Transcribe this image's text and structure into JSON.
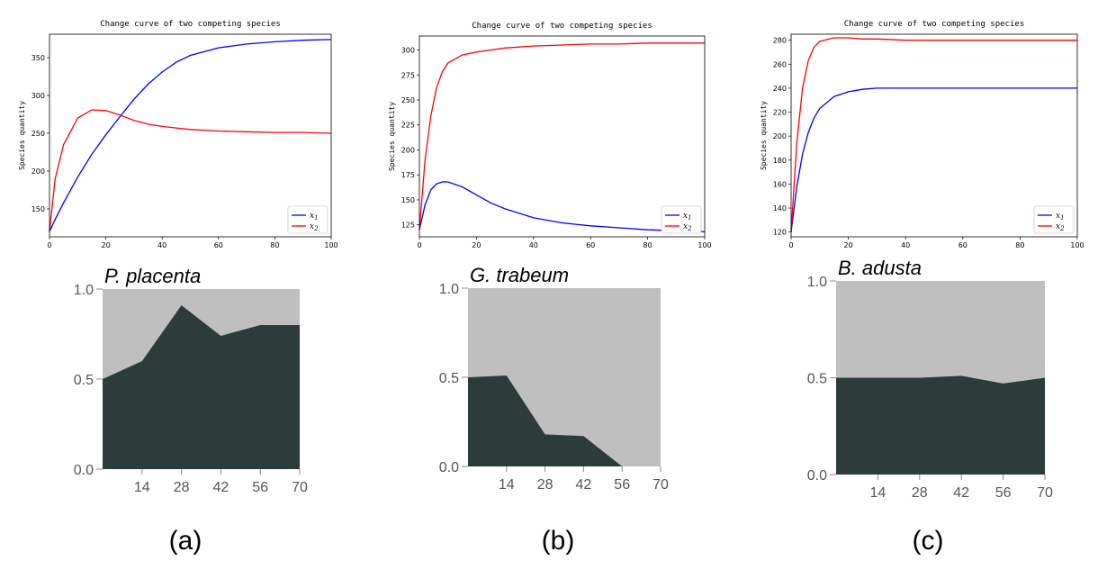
{
  "colors": {
    "x1": "#0000ff",
    "x2": "#ff0000",
    "dark": "#2e3b3b",
    "light": "#c0bfbf"
  },
  "captions": [
    "(a)",
    "(b)",
    "(c)"
  ],
  "chart_data": [
    {
      "type": "line",
      "title": "Change curve of two competing species",
      "ylabel": "Species quantity",
      "xlim": [
        0,
        100
      ],
      "ylim": [
        113,
        381
      ],
      "xticks": [
        0,
        20,
        40,
        60,
        80,
        100
      ],
      "yticks": [
        150,
        200,
        250,
        300,
        350
      ],
      "legend": "bottom-right",
      "x": [
        0,
        2,
        5,
        10,
        15,
        20,
        25,
        30,
        35,
        40,
        45,
        50,
        60,
        70,
        80,
        90,
        100
      ],
      "series": [
        {
          "name": "x1",
          "color": "blue",
          "values": [
            120,
            136,
            158,
            192,
            222,
            248,
            272,
            295,
            315,
            331,
            344,
            353,
            363,
            368,
            371,
            373,
            374
          ]
        },
        {
          "name": "x2",
          "color": "red",
          "values": [
            120,
            190,
            235,
            270,
            281,
            280,
            274,
            267,
            262,
            259,
            257,
            255,
            253,
            252,
            251,
            251,
            250
          ]
        }
      ]
    },
    {
      "type": "line",
      "title": "Change curve of two competing species",
      "ylabel": "Species quantity",
      "xlim": [
        0,
        100
      ],
      "ylim": [
        113,
        314
      ],
      "xticks": [
        0,
        20,
        40,
        60,
        80,
        100
      ],
      "yticks": [
        125,
        150,
        175,
        200,
        225,
        250,
        275,
        300
      ],
      "legend": "bottom-right",
      "x": [
        0,
        2,
        4,
        6,
        8,
        10,
        15,
        20,
        25,
        30,
        40,
        50,
        60,
        70,
        80,
        90,
        100
      ],
      "series": [
        {
          "name": "x1",
          "color": "blue",
          "values": [
            120,
            145,
            160,
            166,
            168,
            168,
            163,
            155,
            147,
            141,
            132,
            127,
            124,
            122,
            120,
            119,
            118
          ]
        },
        {
          "name": "x2",
          "color": "red",
          "values": [
            120,
            190,
            234,
            262,
            278,
            287,
            295,
            298,
            300,
            302,
            304,
            305,
            306,
            306,
            307,
            307,
            307
          ]
        }
      ]
    },
    {
      "type": "line",
      "title": "Change curve of two competing species",
      "ylabel": "Species quantity",
      "xlim": [
        0,
        100
      ],
      "ylim": [
        116,
        285
      ],
      "xticks": [
        0,
        20,
        40,
        60,
        80,
        100
      ],
      "yticks": [
        120,
        140,
        160,
        180,
        200,
        220,
        240,
        260,
        280
      ],
      "legend": "bottom-right",
      "x": [
        0,
        2,
        4,
        6,
        8,
        10,
        15,
        20,
        25,
        30,
        40,
        50,
        60,
        70,
        80,
        90,
        100
      ],
      "series": [
        {
          "name": "x1",
          "color": "blue",
          "values": [
            120,
            158,
            185,
            203,
            215,
            223,
            233,
            237,
            239,
            240,
            240,
            240,
            240,
            240,
            240,
            240,
            240
          ]
        },
        {
          "name": "x2",
          "color": "red",
          "values": [
            120,
            195,
            240,
            263,
            274,
            279,
            282,
            282,
            281,
            281,
            280,
            280,
            280,
            280,
            280,
            280,
            280
          ]
        }
      ]
    },
    {
      "type": "area",
      "title": "P. placenta",
      "xlim": [
        0,
        70
      ],
      "ylim": [
        0,
        1
      ],
      "xticks": [
        14,
        28,
        42,
        56,
        70
      ],
      "yticks": [
        "0.0",
        "0.5",
        "1.0"
      ],
      "x": [
        0,
        7,
        14,
        28,
        42,
        56,
        70
      ],
      "values": [
        0.5,
        0.55,
        0.6,
        0.91,
        0.74,
        0.8,
        0.8
      ]
    },
    {
      "type": "area",
      "title": "G. trabeum",
      "xlim": [
        0,
        70
      ],
      "ylim": [
        0,
        1
      ],
      "xticks": [
        14,
        28,
        42,
        56,
        70
      ],
      "yticks": [
        "0.0",
        "0.5",
        "1.0"
      ],
      "x": [
        0,
        14,
        28,
        42,
        56,
        70
      ],
      "values": [
        0.5,
        0.51,
        0.18,
        0.17,
        0.0,
        0.0
      ]
    },
    {
      "type": "area",
      "title": "B. adusta",
      "xlim": [
        0,
        70
      ],
      "ylim": [
        0,
        1
      ],
      "xticks": [
        14,
        28,
        42,
        56,
        70
      ],
      "yticks": [
        "0.0",
        "0.5",
        "1.0"
      ],
      "x": [
        0,
        14,
        28,
        42,
        56,
        70
      ],
      "values": [
        0.5,
        0.5,
        0.5,
        0.51,
        0.47,
        0.5
      ]
    }
  ]
}
